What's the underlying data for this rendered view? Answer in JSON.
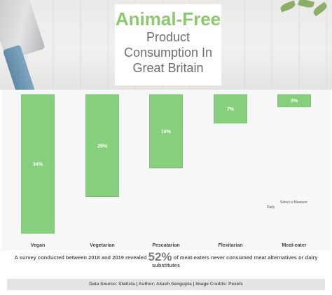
{
  "header": {
    "title_line1": "Animal-Free",
    "title_line2": "Product",
    "title_line3": "Consumption In",
    "title_line4": "Great Britain"
  },
  "chart_data": {
    "type": "bar",
    "orientation": "vertical-downward",
    "categories": [
      "Vegan",
      "Vegetarian",
      "Pescatarian",
      "Flexitarian",
      "Meat-eater"
    ],
    "values": [
      34,
      25,
      18,
      7,
      3
    ],
    "value_labels": [
      "34%",
      "25%",
      "18%",
      "7%",
      "3%"
    ],
    "unit": "%",
    "ylim": [
      0,
      34
    ],
    "grid": false,
    "bar_color": "#85cf7d"
  },
  "filter": {
    "label": "Select a Measure",
    "value": "Daily"
  },
  "summary": {
    "before": "A survey conducted between 2018 and 2019 revealed",
    "highlight": "52%",
    "after": "of meat-eaters never consumed meat alternatives or dairy substitutes"
  },
  "footer": {
    "text": "Data Source: Statista | Author: Akash Sengupta | Image Credits: Pexels"
  }
}
